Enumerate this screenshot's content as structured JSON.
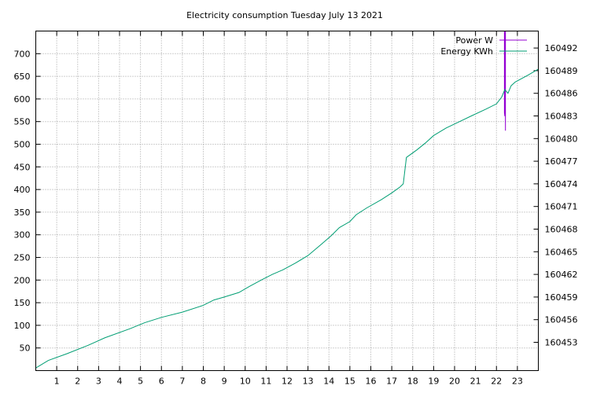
{
  "chart_data": {
    "type": "line",
    "title": "Electricity consumption Tuesday July 13 2021",
    "xlabel": "",
    "ylabel": "",
    "y2label": "",
    "xlim": [
      0,
      24
    ],
    "ylim": [
      0,
      750
    ],
    "y2lim": [
      160449.25,
      160494.25
    ],
    "xticks": [
      "1",
      "2",
      "3",
      "4",
      "5",
      "6",
      "7",
      "8",
      "9",
      "10",
      "11",
      "12",
      "13",
      "14",
      "15",
      "16",
      "17",
      "18",
      "19",
      "20",
      "21",
      "22",
      "23"
    ],
    "yticks": [
      "50",
      "100",
      "150",
      "200",
      "250",
      "300",
      "350",
      "400",
      "450",
      "500",
      "550",
      "600",
      "650",
      "700"
    ],
    "y2ticks": [
      "160453",
      "160456",
      "160459",
      "160462",
      "160465",
      "160468",
      "160471",
      "160474",
      "160477",
      "160480",
      "160483",
      "160486",
      "160489",
      "160492"
    ],
    "grid": true,
    "legend_position": "top-right",
    "series": [
      {
        "name": "Power W",
        "axis": "y1",
        "color": "#9400d3",
        "x": [
          22.38,
          22.38,
          22.4,
          22.4,
          22.43,
          22.43
        ],
        "y": [
          750,
          570,
          562,
          750,
          530,
          750
        ]
      },
      {
        "name": "Energy KWh",
        "axis": "y2",
        "color": "#009e73",
        "x": [
          0,
          0.6,
          1.5,
          2.5,
          3.3,
          4.5,
          5.2,
          6.0,
          7.0,
          8.0,
          8.5,
          9.0,
          9.7,
          10.2,
          10.8,
          11.3,
          11.8,
          12.4,
          13.0,
          13.6,
          14.1,
          14.5,
          15.0,
          15.3,
          15.8,
          16.5,
          17.0,
          17.4,
          17.55,
          17.7,
          18.2,
          18.6,
          19.0,
          19.6,
          20.2,
          20.8,
          21.5,
          22.0,
          22.25,
          22.4,
          22.55,
          22.7,
          22.9,
          23.5,
          24.0
        ],
        "y": [
          160449.6,
          160450.6,
          160451.5,
          160452.6,
          160453.6,
          160454.8,
          160455.6,
          160456.3,
          160457.0,
          160457.9,
          160458.6,
          160459.0,
          160459.6,
          160460.4,
          160461.3,
          160462.0,
          160462.6,
          160463.5,
          160464.5,
          160465.9,
          160467.1,
          160468.2,
          160469.0,
          160469.9,
          160470.8,
          160471.9,
          160472.8,
          160473.6,
          160474.0,
          160477.5,
          160478.5,
          160479.4,
          160480.4,
          160481.4,
          160482.2,
          160483.0,
          160483.9,
          160484.6,
          160485.5,
          160486.5,
          160486.0,
          160487.0,
          160487.5,
          160488.4,
          160489.2
        ]
      }
    ]
  }
}
